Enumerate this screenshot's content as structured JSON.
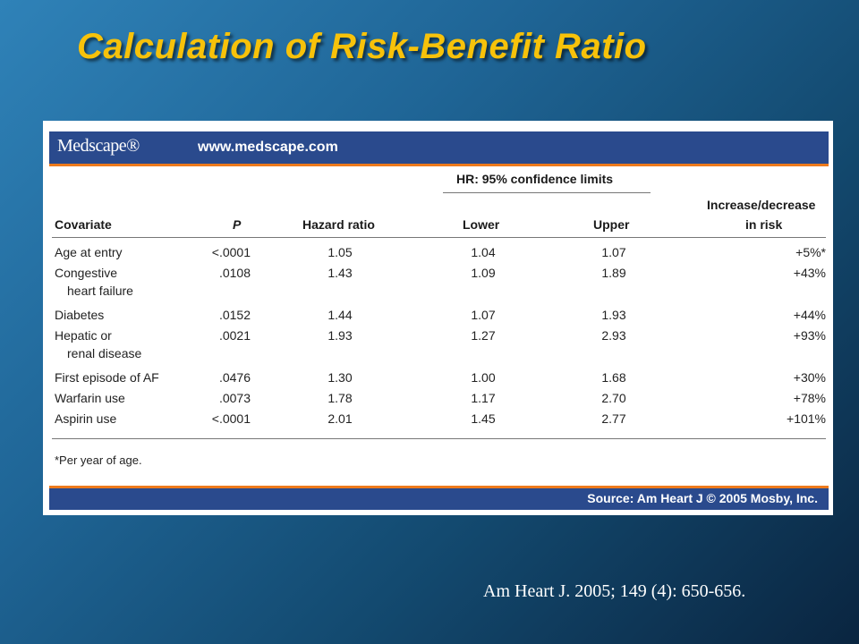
{
  "title": "Calculation of Risk-Benefit Ratio",
  "figure": {
    "brand": "Medscape®",
    "url": "www.medscape.com",
    "group_header": "HR: 95% confidence limits",
    "columns": {
      "covariate": "Covariate",
      "p": "P",
      "hazard_ratio": "Hazard ratio",
      "lower": "Lower",
      "upper": "Upper",
      "increase_line1": "Increase/decrease",
      "increase_line2": "in risk"
    },
    "rows": [
      {
        "covariate": "Age at entry",
        "covariate2": "",
        "p": "<.0001",
        "hr": "1.05",
        "lower": "1.04",
        "upper": "1.07",
        "change": "+5%*"
      },
      {
        "covariate": "Congestive",
        "covariate2": "heart failure",
        "p": ".0108",
        "hr": "1.43",
        "lower": "1.09",
        "upper": "1.89",
        "change": "+43%"
      },
      {
        "covariate": "Diabetes",
        "covariate2": "",
        "p": ".0152",
        "hr": "1.44",
        "lower": "1.07",
        "upper": "1.93",
        "change": "+44%"
      },
      {
        "covariate": "Hepatic or",
        "covariate2": "renal disease",
        "p": ".0021",
        "hr": "1.93",
        "lower": "1.27",
        "upper": "2.93",
        "change": "+93%"
      },
      {
        "covariate": "First episode of AF",
        "covariate2": "",
        "p": ".0476",
        "hr": "1.30",
        "lower": "1.00",
        "upper": "1.68",
        "change": "+30%"
      },
      {
        "covariate": "Warfarin use",
        "covariate2": "",
        "p": ".0073",
        "hr": "1.78",
        "lower": "1.17",
        "upper": "2.70",
        "change": "+78%"
      },
      {
        "covariate": "Aspirin use",
        "covariate2": "",
        "p": "<.0001",
        "hr": "2.01",
        "lower": "1.45",
        "upper": "2.77",
        "change": "+101%"
      }
    ],
    "footnote": "*Per year of age.",
    "source": "Source: Am Heart J © 2005 Mosby, Inc."
  },
  "citation": "Am Heart J.  2005; 149 (4): 650-656.",
  "colors": {
    "title": "#f7c20a",
    "bar": "#2a4a8d",
    "bar_accent": "#ed7a1c"
  }
}
